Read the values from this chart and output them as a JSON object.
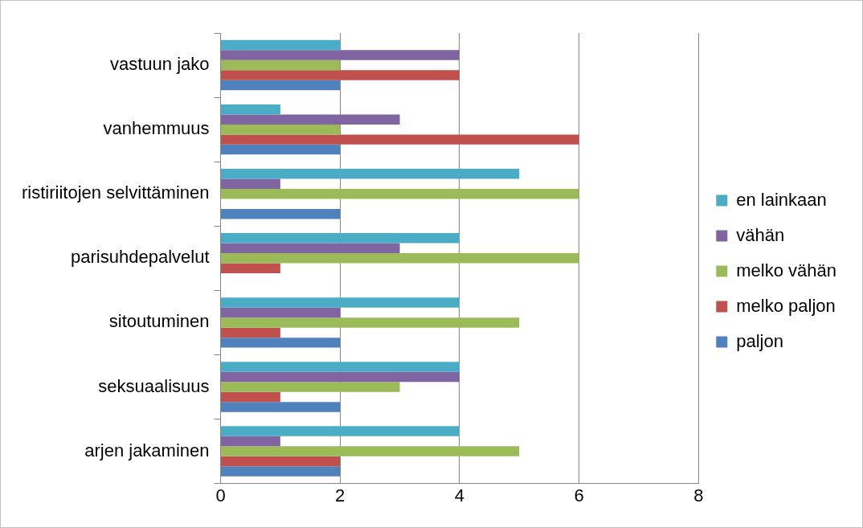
{
  "chart_data": {
    "type": "bar",
    "orientation": "horizontal",
    "categories": [
      "vastuun jako",
      "vanhemmuus",
      "ristiriitojen selvittäminen",
      "parisuhdepalvelut",
      "sitoutuminen",
      "seksuaalisuus",
      "arjen jakaminen"
    ],
    "series": [
      {
        "name": "en lainkaan",
        "color": "#4bacc6",
        "values": [
          2,
          1,
          5,
          4,
          4,
          4,
          4
        ]
      },
      {
        "name": "vähän",
        "color": "#8064a2",
        "values": [
          4,
          3,
          1,
          3,
          2,
          4,
          1
        ]
      },
      {
        "name": "melko vähän",
        "color": "#9bbb59",
        "values": [
          2,
          2,
          6,
          6,
          5,
          3,
          5
        ]
      },
      {
        "name": "melko paljon",
        "color": "#c0504d",
        "values": [
          4,
          6,
          0,
          1,
          1,
          1,
          2
        ]
      },
      {
        "name": "paljon",
        "color": "#4f81bd",
        "values": [
          2,
          2,
          2,
          0,
          2,
          2,
          2
        ]
      }
    ],
    "xlim": [
      0,
      8
    ],
    "xticks": [
      0,
      2,
      4,
      6,
      8
    ],
    "grid": "x",
    "legend": "right"
  }
}
